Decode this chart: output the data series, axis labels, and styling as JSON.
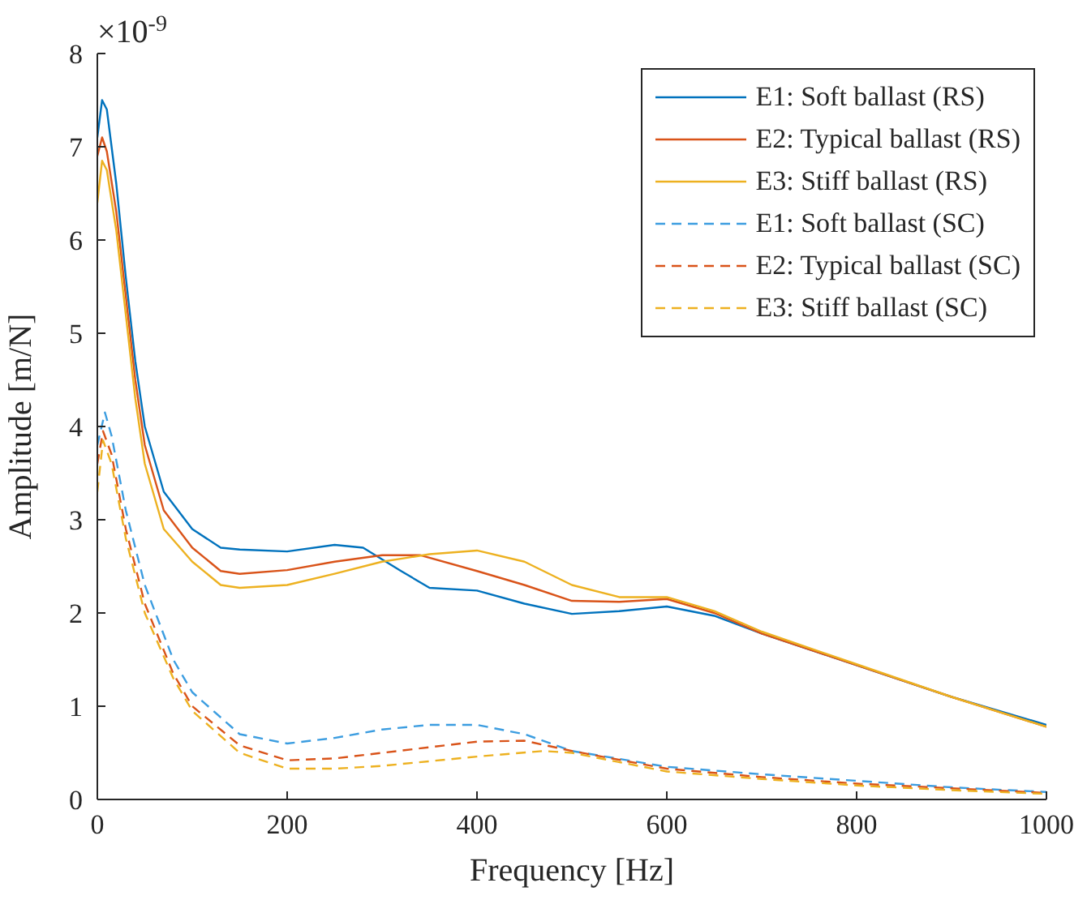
{
  "chart_data": {
    "type": "line",
    "xlabel": "Frequency [Hz]",
    "ylabel": "Amplitude [m/N]",
    "annotations": [
      "×10$^{-9}$"
    ],
    "xlim": [
      0,
      1000
    ],
    "xticks": [
      0,
      200,
      400,
      600,
      800,
      1000
    ],
    "ylim": [
      0,
      8
    ],
    "yticks": [
      0,
      1,
      2,
      3,
      4,
      5,
      6,
      7,
      8
    ],
    "grid": false,
    "legend": "top right",
    "marker": "none",
    "series": [
      {
        "name": "E1: Soft ballast (RS)",
        "color": "#0072bd",
        "line_style": "solid",
        "x": [
          0,
          5,
          10,
          20,
          30,
          40,
          50,
          70,
          100,
          130,
          150,
          200,
          250,
          280,
          320,
          350,
          400,
          450,
          500,
          550,
          600,
          650,
          700,
          800,
          900,
          1000
        ],
        "values": [
          7.1,
          7.5,
          7.4,
          6.6,
          5.6,
          4.7,
          4.0,
          3.3,
          2.9,
          2.7,
          2.68,
          2.66,
          2.73,
          2.7,
          2.45,
          2.27,
          2.24,
          2.1,
          1.99,
          2.02,
          2.07,
          1.97,
          1.78,
          1.44,
          1.1,
          0.8
        ]
      },
      {
        "name": "E2: Typical ballast (RS)",
        "color": "#d95319",
        "line_style": "solid",
        "x": [
          0,
          5,
          10,
          20,
          30,
          40,
          50,
          70,
          100,
          130,
          150,
          200,
          250,
          300,
          340,
          400,
          450,
          500,
          550,
          600,
          650,
          700,
          800,
          900,
          1000
        ],
        "values": [
          6.9,
          7.1,
          6.95,
          6.3,
          5.4,
          4.5,
          3.8,
          3.1,
          2.7,
          2.45,
          2.42,
          2.46,
          2.55,
          2.62,
          2.62,
          2.45,
          2.3,
          2.13,
          2.12,
          2.15,
          2.0,
          1.78,
          1.44,
          1.1,
          0.78
        ]
      },
      {
        "name": "E3: Stiff ballast (RS)",
        "color": "#edb120",
        "line_style": "solid",
        "x": [
          0,
          5,
          10,
          20,
          30,
          40,
          50,
          70,
          100,
          130,
          150,
          200,
          250,
          300,
          350,
          400,
          450,
          500,
          550,
          600,
          650,
          700,
          800,
          900,
          1000
        ],
        "values": [
          6.4,
          6.85,
          6.75,
          6.1,
          5.2,
          4.3,
          3.6,
          2.9,
          2.55,
          2.3,
          2.27,
          2.3,
          2.42,
          2.55,
          2.63,
          2.67,
          2.55,
          2.3,
          2.17,
          2.17,
          2.02,
          1.8,
          1.45,
          1.1,
          0.78
        ]
      },
      {
        "name": "E1: Soft ballast (SC)",
        "color": "#3c9de0",
        "line_style": "dashed",
        "x": [
          0,
          8,
          15,
          30,
          50,
          80,
          100,
          150,
          200,
          250,
          300,
          350,
          400,
          450,
          500,
          600,
          700,
          800,
          900,
          1000
        ],
        "values": [
          3.8,
          4.15,
          3.9,
          3.1,
          2.3,
          1.5,
          1.15,
          0.7,
          0.6,
          0.66,
          0.75,
          0.8,
          0.8,
          0.7,
          0.52,
          0.35,
          0.27,
          0.2,
          0.13,
          0.08
        ]
      },
      {
        "name": "E2: Typical ballast (SC)",
        "color": "#d95319",
        "line_style": "dashed",
        "x": [
          0,
          6,
          15,
          30,
          50,
          80,
          100,
          150,
          200,
          250,
          300,
          400,
          450,
          500,
          600,
          700,
          800,
          900,
          1000
        ],
        "values": [
          3.6,
          3.95,
          3.7,
          2.9,
          2.1,
          1.35,
          1.0,
          0.58,
          0.42,
          0.44,
          0.5,
          0.62,
          0.63,
          0.52,
          0.33,
          0.24,
          0.17,
          0.12,
          0.07
        ]
      },
      {
        "name": "E3: Stiff ballast (SC)",
        "color": "#edb120",
        "line_style": "dashed",
        "x": [
          0,
          6,
          15,
          30,
          50,
          80,
          100,
          150,
          200,
          250,
          300,
          400,
          470,
          500,
          600,
          700,
          800,
          900,
          1000
        ],
        "values": [
          3.3,
          3.85,
          3.6,
          2.8,
          2.0,
          1.3,
          0.95,
          0.5,
          0.33,
          0.33,
          0.36,
          0.46,
          0.52,
          0.5,
          0.3,
          0.22,
          0.15,
          0.1,
          0.06
        ]
      }
    ]
  }
}
